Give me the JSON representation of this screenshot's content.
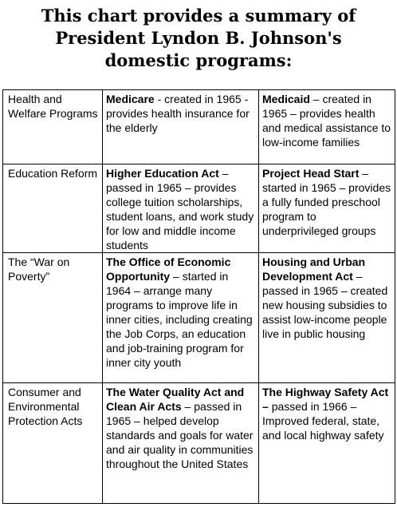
{
  "title_lines": [
    "This chart provides a summary of",
    "President Lyndon B. Johnson's",
    "domestic programs:"
  ],
  "rows": [
    {
      "category": "Health and Welfare Programs",
      "program1": {
        "name": "Medicare",
        "sep": " - ",
        "desc": "created in 1965 - provides health insurance for the elderly"
      },
      "program2": {
        "name": "Medicaid",
        "sep": " – ",
        "desc": "created in 1965 – provides health and medical assistance to low-income families"
      }
    },
    {
      "category": "Education Reform",
      "program1": {
        "name": "Higher Education Act",
        "sep": " – ",
        "desc": "passed in 1965 – provides college tuition scholarships, student loans, and work study for low and middle income students"
      },
      "program2": {
        "name": "Project Head Start",
        "sep": " – ",
        "desc": "started in 1965 – provides a fully funded preschool program to underprivileged groups"
      }
    },
    {
      "category": "The “War on Poverty”",
      "program1": {
        "name": "The Office of Economic Opportunity",
        "sep": " – ",
        "desc": "started in 1964 – arrange many programs to improve life in inner cities, including creating the Job Corps, an education and job-training program for inner city youth"
      },
      "program2": {
        "name": "Housing and Urban Development Act",
        "sep": " – ",
        "desc": "passed in 1965 – created new housing subsidies to assist low-income people live in public housing"
      }
    },
    {
      "category": "Consumer and Environmental Protection Acts",
      "program1": {
        "name": "The Water Quality Act and Clean Air Acts",
        "sep": " – ",
        "desc": "passed in 1965 – helped develop standards and goals for water and air quality in communities throughout the United States"
      },
      "program2": {
        "name": "The Highway Safety Act –",
        "sep": " ",
        "desc": "passed in 1966 – Improved federal, state, and local highway safety"
      }
    }
  ]
}
